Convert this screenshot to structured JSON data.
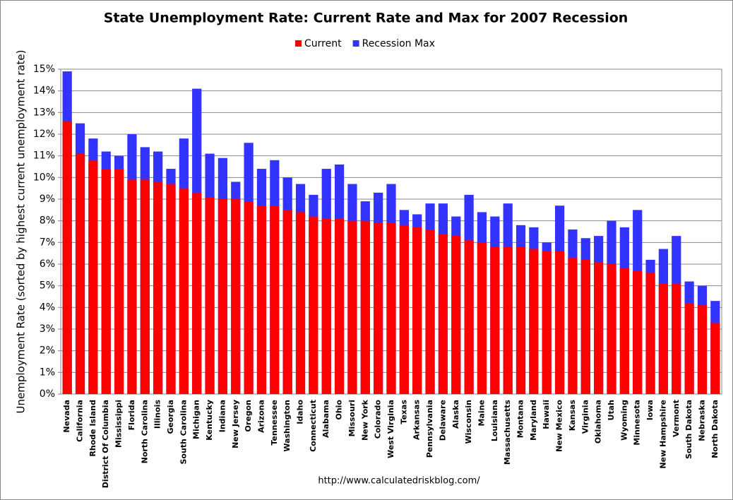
{
  "chart_data": {
    "type": "bar",
    "layout": "overlap",
    "title": "State Unemployment Rate: Current Rate and Max for 2007 Recession",
    "y_label": "Unemployment Rate (sorted by highest current unemployment rate)",
    "source": "http://www.calculatedriskblog.com/",
    "categories": [
      "Nevada",
      "California",
      "Rhode Island",
      "District Of Columbia",
      "Mississippi",
      "Florida",
      "North Carolina",
      "Illinois",
      "Georgia",
      "South Carolina",
      "Michigan",
      "Kentucky",
      "Indiana",
      "New Jersey",
      "Oregon",
      "Arizona",
      "Tennessee",
      "Washington",
      "Idaho",
      "Connecticut",
      "Alabama",
      "Ohio",
      "Missouri",
      "New York",
      "Colorado",
      "West Virginia",
      "Texas",
      "Arkansas",
      "Pennsylvania",
      "Delaware",
      "Alaska",
      "Wisconsin",
      "Maine",
      "Louisiana",
      "Massachusetts",
      "Montana",
      "Maryland",
      "Hawaii",
      "New Mexico",
      "Kansas",
      "Virginia",
      "Oklahoma",
      "Utah",
      "Wyoming",
      "Minnesota",
      "Iowa",
      "New Hampshire",
      "Vermont",
      "South Dakota",
      "Nebraska",
      "North Dakota"
    ],
    "series": [
      {
        "name": "Current",
        "color": "#ff0000",
        "values": [
          12.6,
          11.1,
          10.8,
          10.4,
          10.4,
          9.9,
          9.9,
          9.8,
          9.7,
          9.5,
          9.3,
          9.1,
          9.0,
          9.0,
          8.9,
          8.7,
          8.7,
          8.5,
          8.4,
          8.2,
          8.1,
          8.1,
          8.0,
          8.0,
          7.9,
          7.9,
          7.8,
          7.7,
          7.6,
          7.4,
          7.3,
          7.1,
          7.0,
          6.8,
          6.8,
          6.8,
          6.7,
          6.6,
          6.6,
          6.3,
          6.2,
          6.1,
          6.0,
          5.8,
          5.7,
          5.6,
          5.1,
          5.1,
          4.2,
          4.1,
          3.3
        ]
      },
      {
        "name": "Recession Max",
        "color": "#3333ff",
        "values": [
          14.9,
          12.5,
          11.8,
          11.2,
          11.0,
          12.0,
          11.4,
          11.2,
          10.4,
          11.8,
          14.1,
          11.1,
          10.9,
          9.8,
          11.6,
          10.4,
          10.8,
          10.0,
          9.7,
          9.2,
          10.4,
          10.6,
          9.7,
          8.9,
          9.3,
          9.7,
          8.5,
          8.3,
          8.8,
          8.8,
          8.2,
          9.2,
          8.4,
          8.2,
          8.8,
          7.8,
          7.7,
          7.0,
          8.7,
          7.6,
          7.2,
          7.3,
          8.0,
          7.7,
          8.5,
          6.2,
          6.7,
          7.3,
          5.2,
          5.0,
          4.3
        ]
      }
    ],
    "ylim": [
      0,
      15
    ],
    "yticks": [
      {
        "value": 0,
        "label": "0%"
      },
      {
        "value": 1,
        "label": "1%"
      },
      {
        "value": 2,
        "label": "2%"
      },
      {
        "value": 3,
        "label": "3%"
      },
      {
        "value": 4,
        "label": "4%"
      },
      {
        "value": 5,
        "label": "5%"
      },
      {
        "value": 6,
        "label": "6%"
      },
      {
        "value": 7,
        "label": "7%"
      },
      {
        "value": 8,
        "label": "8%"
      },
      {
        "value": 9,
        "label": "9%"
      },
      {
        "value": 10,
        "label": "10%"
      },
      {
        "value": 11,
        "label": "11%"
      },
      {
        "value": 12,
        "label": "12%"
      },
      {
        "value": 13,
        "label": "13%"
      },
      {
        "value": 14,
        "label": "14%"
      },
      {
        "value": 15,
        "label": "15%"
      }
    ],
    "grid": true,
    "legend": "top"
  }
}
